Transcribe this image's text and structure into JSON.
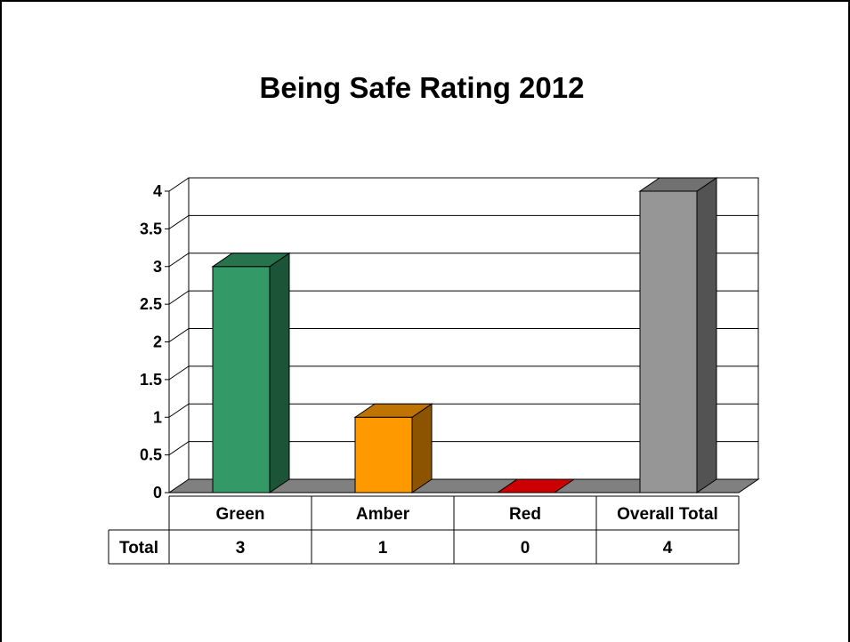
{
  "colors": {
    "green": "#339966",
    "amber": "#FF9900",
    "red": "#CC0000",
    "gray": "#969696",
    "floor": "#808080"
  },
  "chart_data": {
    "type": "bar",
    "title": "Being Safe Rating 2012",
    "categories": [
      "Green",
      "Amber",
      "Red",
      "Overall Total"
    ],
    "series": [
      {
        "name": "Total",
        "values": [
          3,
          1,
          0,
          4
        ]
      }
    ],
    "bar_colors": [
      "#339966",
      "#FF9900",
      "#CC0000",
      "#969696"
    ],
    "y_ticks": [
      "0",
      "0.5",
      "1",
      "1.5",
      "2",
      "2.5",
      "3",
      "3.5",
      "4"
    ],
    "ylim": [
      0,
      4
    ],
    "grid": true,
    "three_d": true,
    "data_table": {
      "row_label": "Total",
      "values": [
        "3",
        "1",
        "0",
        "4"
      ]
    }
  }
}
